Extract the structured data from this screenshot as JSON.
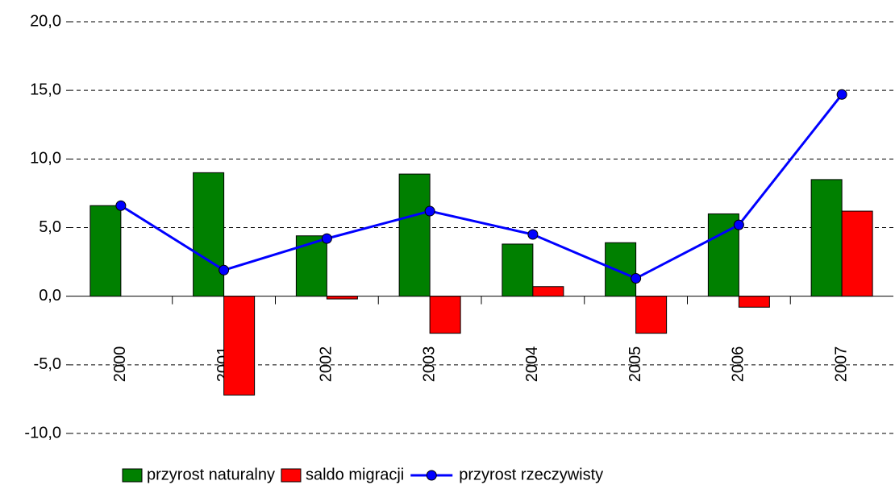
{
  "chart_data": {
    "type": "bar",
    "categories": [
      "2000",
      "2001",
      "2002",
      "2003",
      "2004",
      "2005",
      "2006",
      "2007"
    ],
    "series": [
      {
        "name": "przyrost naturalny",
        "type": "bar",
        "color": "#008000",
        "values": [
          6.6,
          9.0,
          4.4,
          8.9,
          3.8,
          3.9,
          6.0,
          8.5
        ]
      },
      {
        "name": "saldo migracji",
        "type": "bar",
        "color": "#ff0000",
        "values": [
          0.0,
          -7.2,
          -0.2,
          -2.7,
          0.7,
          -2.7,
          -0.8,
          6.2
        ]
      },
      {
        "name": "przyrost rzeczywisty",
        "type": "line",
        "color": "#0000ff",
        "values": [
          6.6,
          1.9,
          4.2,
          6.2,
          4.5,
          1.3,
          5.2,
          14.7
        ]
      }
    ],
    "ylim": [
      -10,
      20
    ],
    "yticks": [
      {
        "value": -10,
        "label": "-10,0"
      },
      {
        "value": -5,
        "label": "-5,0"
      },
      {
        "value": 0,
        "label": "0,0"
      },
      {
        "value": 5,
        "label": "5,0"
      },
      {
        "value": 10,
        "label": "10,0"
      },
      {
        "value": 15,
        "label": "15,0"
      },
      {
        "value": 20,
        "label": "20,0"
      }
    ],
    "grid": true,
    "legend": "bottom"
  }
}
